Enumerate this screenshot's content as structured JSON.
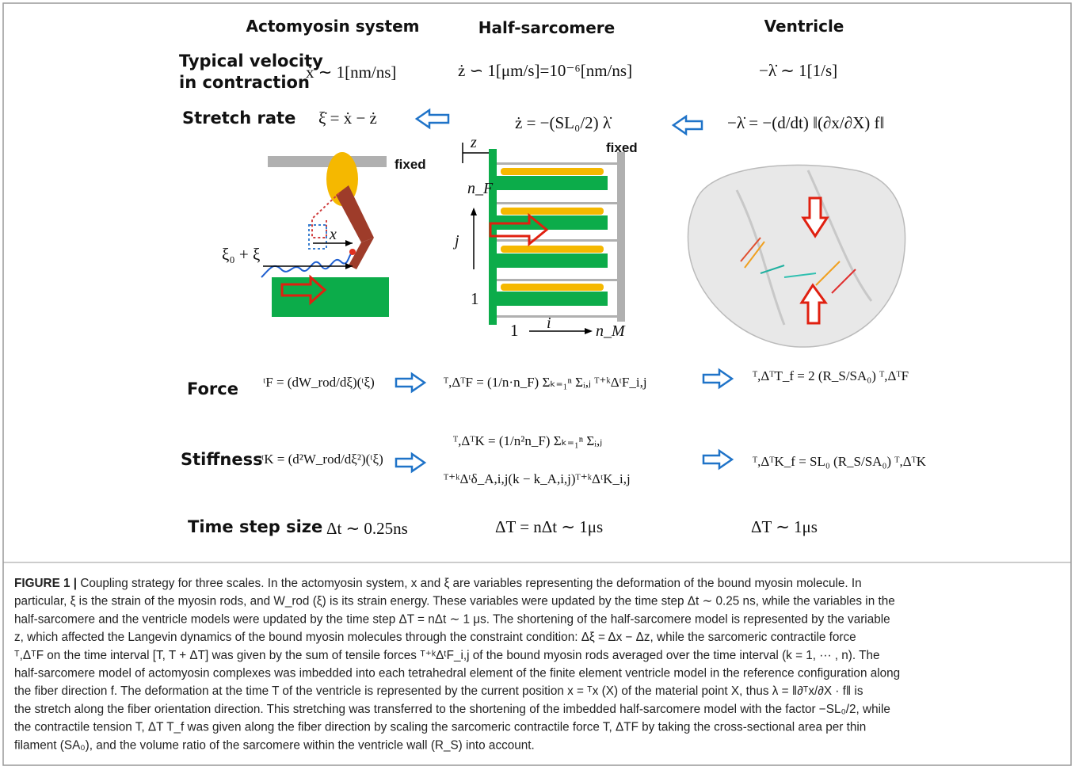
{
  "header": {
    "columns": [
      "Actomyosin system",
      "Half-sarcomere",
      "Ventricle"
    ]
  },
  "rows": [
    {
      "label_lines": [
        "Typical velocity",
        "in contraction"
      ],
      "actomyosin": "ẋ ∼ 1[nm/ns]",
      "half_sarcomere": "ż ∽ 1[μm/s]=10⁻⁶[nm/ns]",
      "ventricle": "−λ̇ ∼ 1[1/s]"
    },
    {
      "label_lines": [
        "Stretch rate"
      ],
      "actomyosin": "ξ̇ = ẋ − ż",
      "half_sarcomere": "ż = −(SL₀/2) λ̇",
      "ventricle": "−λ̇ = −(d/dt) ‖(∂x/∂X) f‖"
    },
    {
      "label_lines": [
        "Force"
      ],
      "actomyosin": "ᵗF = (dW_rod/dξ)(ᵗξ)",
      "half_sarcomere": "ᵀ,ΔᵀF = (1/n·n_F) Σₖ₌₁ⁿ Σᵢ,ⱼ ᵀ⁺ᵏΔᵗF_i,j",
      "ventricle": "ᵀ,ΔᵀT_f = 2 (R_S/SA₀) ᵀ,ΔᵀF"
    },
    {
      "label_lines": [
        "Stiffness"
      ],
      "actomyosin": "ᵗK = (d²W_rod/dξ²)(ᵗξ)",
      "half_sarcomere": [
        "ᵀ,ΔᵀK = (1/n²n_F) Σₖ₌₁ⁿ Σᵢ,ⱼ",
        "ᵀ⁺ᵏΔᵗδ_A,i,j(k − k_A,i,j)ᵀ⁺ᵏΔᵗK_i,j"
      ],
      "ventricle": "ᵀ,ΔᵀK_f = SL₀ (R_S/SA₀) ᵀ,ΔᵀK"
    },
    {
      "label_lines": [
        "Time step size"
      ],
      "actomyosin": "Δt ∼ 0.25ns",
      "half_sarcomere": "ΔT = nΔt ∼ 1μs",
      "ventricle": "ΔT ∼ 1μs"
    }
  ],
  "diagram_labels": {
    "actomyosin": [
      "fixed",
      "x",
      "ξ₀ + ξ"
    ],
    "half_sarcomere": [
      "z",
      "fixed",
      "n_F",
      "j",
      "1",
      "1",
      "i",
      "n_M"
    ]
  },
  "caption": {
    "label": "FIGURE 1 |",
    "lines": [
      " Coupling strategy for three scales. In the actomyosin system, x and ξ are variables representing the deformation of the bound myosin molecule. In",
      "particular, ξ is the strain of the myosin rods, and W_rod (ξ) is its strain energy. These variables were updated by the time step Δt ∼ 0.25 ns, while the variables in the",
      "half-sarcomere and the ventricle models were updated by the time step ΔT = nΔt ∼ 1 μs. The shortening of the half-sarcomere model is represented by the variable",
      "z, which affected the Langevin dynamics of the bound myosin molecules through the constraint condition: Δξ = Δx − Δz, while the sarcomeric contractile force",
      "ᵀ,ΔᵀF on the time interval [T, T + ΔT] was given by the sum of tensile forces ᵀ⁺ᵏΔᵗF_i,j of the bound myosin rods averaged over the time interval (k = 1, ··· , n). The",
      "half-sarcomere model of actomyosin complexes was imbedded into each tetrahedral element of the finite element ventricle model in the reference configuration along",
      "the fiber direction f. The deformation at the time T of the ventricle is represented by the current position x = ᵀx (X) of the material point X, thus λ = ‖∂ᵀx/∂X · f‖ is",
      "the stretch along the fiber orientation direction. This stretching was transferred to the shortening of the imbedded half-sarcomere model with the factor −SL₀/2, while",
      "the contractile tension T, ΔT T_f was given along the fiber direction by scaling the sarcomeric contractile force T, ΔTF by taking the cross-sectional area per thin",
      "filament (SA₀), and the volume ratio of the sarcomere within the ventricle wall (R_S) into account."
    ]
  }
}
